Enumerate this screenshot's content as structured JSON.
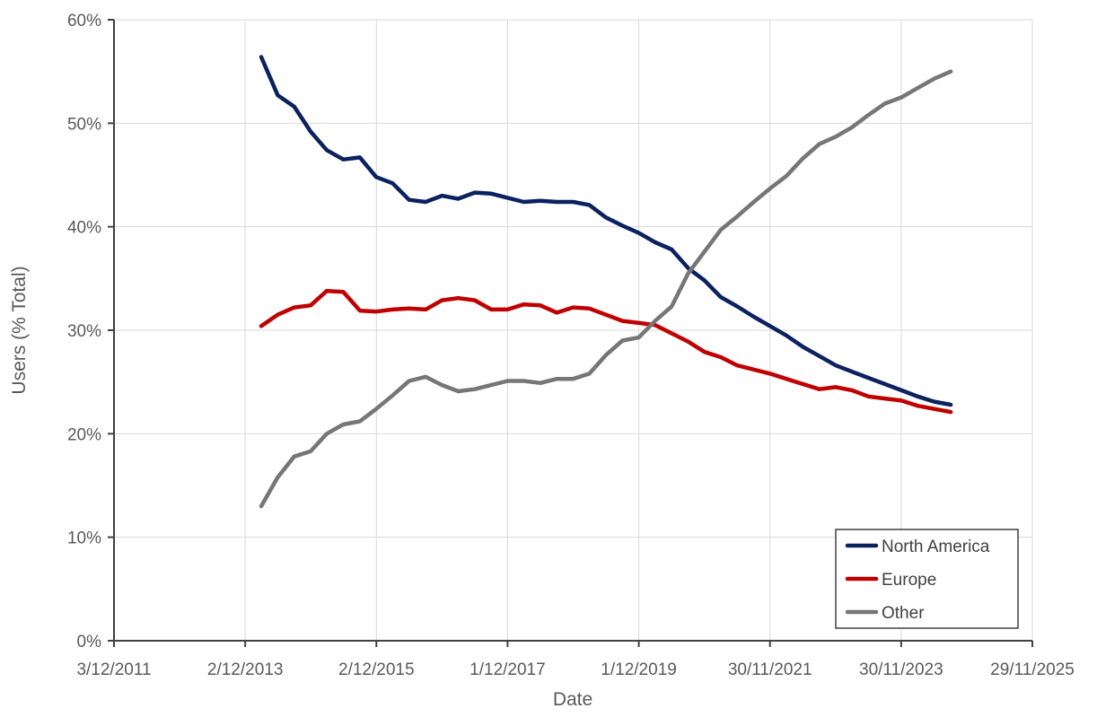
{
  "chart_data": {
    "type": "line",
    "xlabel": "Date",
    "ylabel": "Users (% Total)",
    "x_tick_labels": [
      "3/12/2011",
      "2/12/2013",
      "2/12/2015",
      "1/12/2017",
      "1/12/2019",
      "30/11/2021",
      "30/11/2023",
      "29/11/2025"
    ],
    "y_tick_labels": [
      "0%",
      "10%",
      "20%",
      "30%",
      "40%",
      "50%",
      "60%"
    ],
    "xlim": [
      "2011-12-03",
      "2025-11-29"
    ],
    "ylim": [
      0,
      60
    ],
    "grid": true,
    "legend_position": "bottom-right",
    "x": [
      "2014-03-01",
      "2014-06-01",
      "2014-09-01",
      "2014-12-01",
      "2015-03-01",
      "2015-06-01",
      "2015-09-01",
      "2015-12-01",
      "2016-03-01",
      "2016-06-01",
      "2016-09-01",
      "2016-12-01",
      "2017-03-01",
      "2017-06-01",
      "2017-09-01",
      "2017-12-01",
      "2018-03-01",
      "2018-06-01",
      "2018-09-01",
      "2018-12-01",
      "2019-03-01",
      "2019-06-01",
      "2019-09-01",
      "2019-12-01",
      "2020-03-01",
      "2020-06-01",
      "2020-09-01",
      "2020-12-01",
      "2021-03-01",
      "2021-06-01",
      "2021-09-01",
      "2021-12-01",
      "2022-03-01",
      "2022-06-01",
      "2022-09-01",
      "2022-12-01",
      "2023-03-01",
      "2023-06-01",
      "2023-09-01",
      "2023-12-01",
      "2024-03-01",
      "2024-06-01",
      "2024-09-01"
    ],
    "series": [
      {
        "name": "North America",
        "color": "#0b2160",
        "values": [
          56.4,
          52.7,
          51.6,
          49.2,
          47.4,
          46.5,
          46.7,
          44.8,
          44.2,
          42.6,
          42.4,
          43.0,
          42.7,
          43.3,
          43.2,
          42.8,
          42.4,
          42.5,
          42.4,
          42.4,
          42.1,
          40.9,
          40.1,
          39.4,
          38.5,
          37.8,
          36.0,
          34.8,
          33.2,
          32.3,
          31.3,
          30.4,
          29.5,
          28.4,
          27.5,
          26.6,
          26.0,
          25.4,
          24.8,
          24.2,
          23.6,
          23.1,
          22.8
        ]
      },
      {
        "name": "Europe",
        "color": "#c00000",
        "values": [
          30.4,
          31.5,
          32.2,
          32.4,
          33.8,
          33.7,
          31.9,
          31.8,
          32.0,
          32.1,
          32.0,
          32.9,
          33.1,
          32.9,
          32.0,
          32.0,
          32.5,
          32.4,
          31.7,
          32.2,
          32.1,
          31.5,
          30.9,
          30.7,
          30.5,
          29.7,
          28.9,
          27.9,
          27.4,
          26.6,
          26.2,
          25.8,
          25.3,
          24.8,
          24.3,
          24.5,
          24.2,
          23.6,
          23.4,
          23.2,
          22.7,
          22.4,
          22.1
        ]
      },
      {
        "name": "Other",
        "color": "#767676",
        "values": [
          13.0,
          15.8,
          17.8,
          18.3,
          20.0,
          20.9,
          21.2,
          22.4,
          23.7,
          25.1,
          25.5,
          24.7,
          24.1,
          24.3,
          24.7,
          25.1,
          25.1,
          24.9,
          25.3,
          25.3,
          25.8,
          27.6,
          29.0,
          29.3,
          30.9,
          32.3,
          35.5,
          37.6,
          39.7,
          41.0,
          42.4,
          43.7,
          44.9,
          46.6,
          48.0,
          48.7,
          49.6,
          50.8,
          51.9,
          52.5,
          53.4,
          54.3,
          55.0
        ]
      }
    ]
  }
}
